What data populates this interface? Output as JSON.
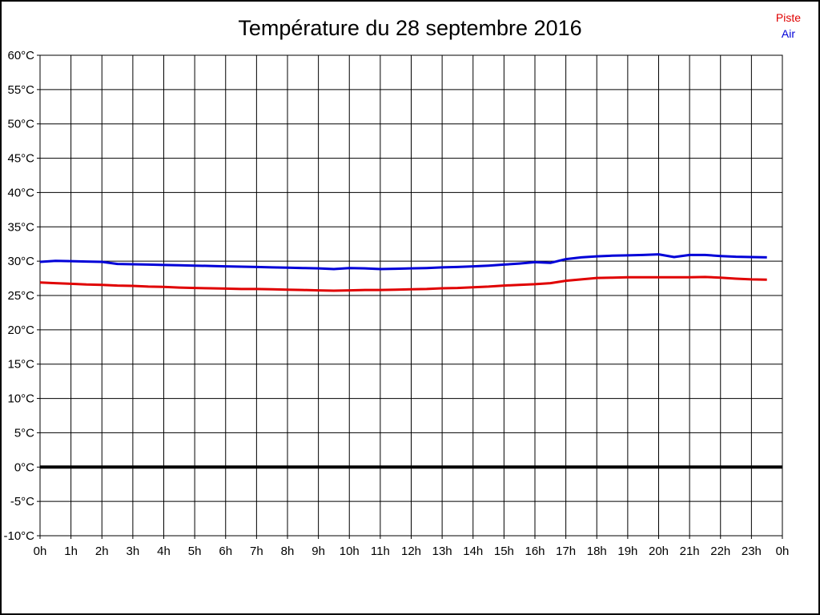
{
  "header": {
    "title": "Température du 28 septembre 2016"
  },
  "legend": {
    "position": "top-right",
    "items": [
      {
        "label": "Piste",
        "color": "#e00000"
      },
      {
        "label": "Air",
        "color": "#0000d8"
      }
    ]
  },
  "chart_data": {
    "type": "line",
    "title": "Température du 28 septembre 2016",
    "xlabel": "",
    "ylabel": "",
    "xlim": [
      0,
      24
    ],
    "ylim": [
      -10,
      60
    ],
    "grid": true,
    "grid_color": "#000000",
    "background_color": "#ffffff",
    "zero_line": {
      "value": 0,
      "color": "#000000",
      "width": 4
    },
    "legend_position": "top-right",
    "x_unit": "hour-of-day",
    "x_tick_positions": [
      0,
      1,
      2,
      3,
      4,
      5,
      6,
      7,
      8,
      9,
      10,
      11,
      12,
      13,
      14,
      15,
      16,
      17,
      18,
      19,
      20,
      21,
      22,
      23,
      24
    ],
    "x_tick_labels": [
      "0h",
      "1h",
      "2h",
      "3h",
      "4h",
      "5h",
      "6h",
      "7h",
      "8h",
      "9h",
      "10h",
      "11h",
      "12h",
      "13h",
      "14h",
      "15h",
      "16h",
      "17h",
      "18h",
      "19h",
      "20h",
      "21h",
      "22h",
      "23h",
      "0h"
    ],
    "y_tick_values": [
      60,
      55,
      50,
      45,
      40,
      35,
      30,
      25,
      20,
      15,
      10,
      5,
      0,
      -5,
      -10
    ],
    "y_tick_labels": [
      "60°C",
      "55°C",
      "50°C",
      "45°C",
      "40°C",
      "35°C",
      "30°C",
      "25°C",
      "20°C",
      "15°C",
      "10°C",
      "5°C",
      "0°C",
      "-5°C",
      "-10°C"
    ],
    "x": [
      0,
      0.5,
      1,
      1.5,
      2,
      2.5,
      3,
      3.5,
      4,
      4.5,
      5,
      5.5,
      6,
      6.5,
      7,
      7.5,
      8,
      8.5,
      9,
      9.5,
      10,
      10.5,
      11,
      11.5,
      12,
      12.5,
      13,
      13.5,
      14,
      14.5,
      15,
      15.5,
      16,
      16.5,
      17,
      17.5,
      18,
      18.5,
      19,
      19.5,
      20,
      20.5,
      21,
      21.5,
      22,
      22.5,
      23,
      23.5
    ],
    "series": [
      {
        "name": "Piste",
        "color": "#e00000",
        "values": [
          26.9,
          26.8,
          26.7,
          26.6,
          26.55,
          26.45,
          26.4,
          26.3,
          26.25,
          26.15,
          26.1,
          26.05,
          26.0,
          25.95,
          25.95,
          25.9,
          25.85,
          25.8,
          25.75,
          25.7,
          25.75,
          25.8,
          25.8,
          25.85,
          25.9,
          25.95,
          26.05,
          26.1,
          26.2,
          26.3,
          26.45,
          26.55,
          26.65,
          26.8,
          27.15,
          27.35,
          27.55,
          27.6,
          27.65,
          27.65,
          27.65,
          27.65,
          27.65,
          27.7,
          27.6,
          27.45,
          27.35,
          27.3
        ]
      },
      {
        "name": "Air",
        "color": "#0000d8",
        "values": [
          29.9,
          30.05,
          30.0,
          29.95,
          29.9,
          29.6,
          29.55,
          29.5,
          29.45,
          29.4,
          29.35,
          29.3,
          29.25,
          29.2,
          29.15,
          29.1,
          29.05,
          29.0,
          28.95,
          28.85,
          29.0,
          28.95,
          28.85,
          28.9,
          28.95,
          29.0,
          29.1,
          29.15,
          29.25,
          29.35,
          29.5,
          29.65,
          29.85,
          29.75,
          30.3,
          30.55,
          30.7,
          30.8,
          30.85,
          30.9,
          31.0,
          30.6,
          30.9,
          30.9,
          30.75,
          30.65,
          30.6,
          30.55
        ]
      }
    ]
  }
}
